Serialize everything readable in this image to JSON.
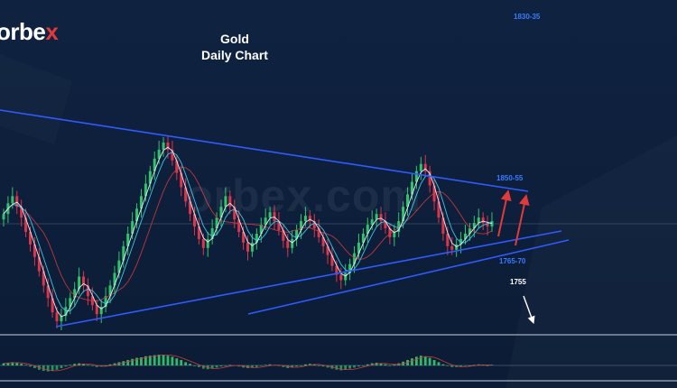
{
  "logo": {
    "text": "orbe",
    "x_letter": "x"
  },
  "title": {
    "line1": "Gold",
    "line2": "Daily Chart"
  },
  "watermark": "orbex.com",
  "levels": {
    "top": "1830-35",
    "resistance": "1850-55",
    "support": "1765-70",
    "target": "1755"
  },
  "colors": {
    "background": "#0e1f3a",
    "bull_candle": "#2ec46a",
    "bear_candle": "#e0344a",
    "trendline": "#2f5bff",
    "arrow_up": "#e23a3a",
    "arrow_down": "#ffffff",
    "ma_white": "#e6eef8",
    "ma_cyan": "#38c8e6",
    "ma_red": "#d23a3a",
    "level_blue": "#3a7bff",
    "level_white": "#ffffff"
  },
  "chart_data": {
    "type": "candlestick",
    "title": "Gold Daily Chart",
    "y_axis": "price (relative, estimated)",
    "closes": [
      1812,
      1818,
      1822,
      1816,
      1810,
      1802,
      1795,
      1788,
      1780,
      1772,
      1765,
      1757,
      1752,
      1755,
      1760,
      1765,
      1770,
      1777,
      1772,
      1766,
      1761,
      1756,
      1760,
      1766,
      1772,
      1779,
      1786,
      1794,
      1801,
      1808,
      1815,
      1822,
      1829,
      1836,
      1843,
      1848,
      1852,
      1848,
      1842,
      1835,
      1827,
      1819,
      1812,
      1805,
      1798,
      1793,
      1798,
      1804,
      1810,
      1816,
      1822,
      1816,
      1809,
      1802,
      1796,
      1791,
      1796,
      1801,
      1806,
      1810,
      1813,
      1808,
      1803,
      1797,
      1793,
      1798,
      1803,
      1808,
      1811,
      1808,
      1804,
      1799,
      1794,
      1789,
      1783,
      1778,
      1775,
      1779,
      1784,
      1790,
      1796,
      1801,
      1806,
      1809,
      1812,
      1808,
      1804,
      1799,
      1802,
      1808,
      1816,
      1823,
      1830,
      1836,
      1840,
      1836,
      1828,
      1819,
      1810,
      1801,
      1794,
      1792,
      1795,
      1798,
      1801,
      1804,
      1807,
      1810,
      1807,
      1805,
      1808
    ]
  },
  "oscillator": {
    "type": "histogram",
    "values": [
      0.4,
      0.5,
      0.6,
      0.5,
      0.3,
      0.1,
      -0.2,
      -0.5,
      -0.8,
      -1.0,
      -1.1,
      -1.0,
      -0.8,
      -0.5,
      -0.2,
      0.1,
      0.3,
      0.4,
      0.3,
      0.1,
      -0.1,
      -0.3,
      -0.2,
      0.0,
      0.2,
      0.4,
      0.6,
      0.8,
      1.0,
      1.2,
      1.4,
      1.5,
      1.7,
      1.8,
      1.9,
      2.0,
      2.0,
      1.8,
      1.6,
      1.3,
      1.0,
      0.6,
      0.3,
      0.0,
      -0.3,
      -0.6,
      -0.7,
      -0.6,
      -0.4,
      -0.2,
      0.0,
      0.1,
      0.0,
      -0.2,
      -0.4,
      -0.5,
      -0.4,
      -0.3,
      -0.1,
      0.1,
      0.2,
      0.1,
      -0.1,
      -0.3,
      -0.5,
      -0.4,
      -0.2,
      0.0,
      0.2,
      0.3,
      0.2,
      0.0,
      -0.2,
      -0.4,
      -0.6,
      -0.8,
      -0.9,
      -0.8,
      -0.6,
      -0.4,
      -0.2,
      0.0,
      0.2,
      0.4,
      0.5,
      0.4,
      0.2,
      0.0,
      0.2,
      0.4,
      0.7,
      1.0,
      1.3,
      1.6,
      1.8,
      1.7,
      1.4,
      1.0,
      0.6,
      0.2,
      -0.1,
      -0.3,
      -0.3,
      -0.2,
      -0.1,
      0.0,
      0.1,
      0.2,
      0.1,
      0.0,
      0.1
    ]
  }
}
